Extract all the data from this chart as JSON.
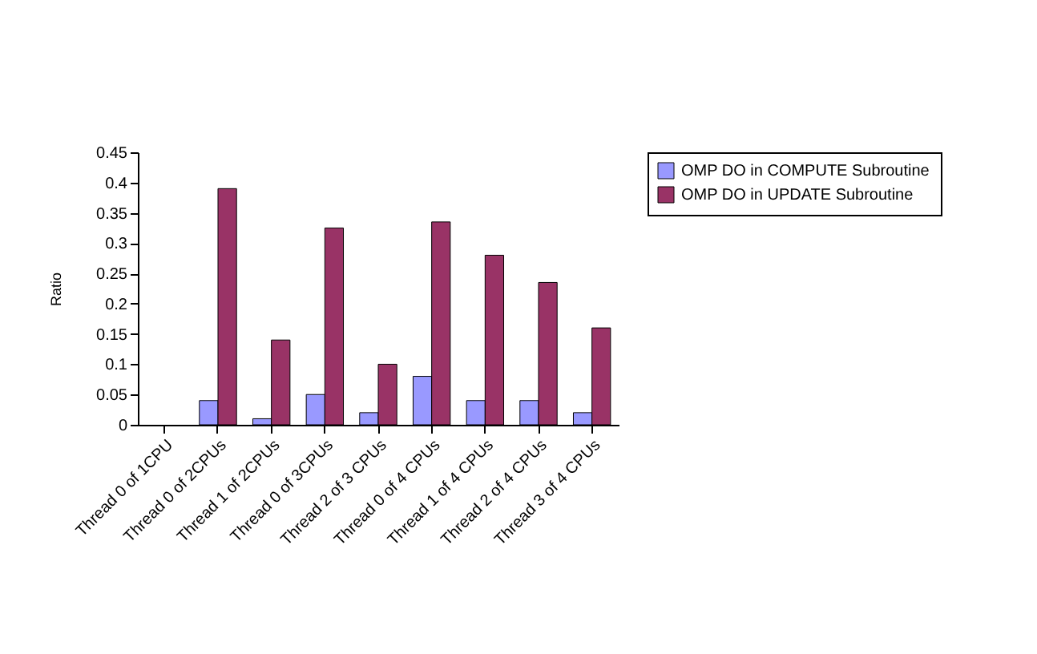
{
  "chart_data": {
    "type": "bar",
    "ylabel": "Ratio",
    "categories": [
      "Thread 0 of 1CPU",
      "Thread 0 of 2CPUs",
      "Thread 1 of 2CPUs",
      "Thread 0 of 3CPUs",
      "Thread 2 of 3 CPUs",
      "Thread 0 of 4 CPUs",
      "Thread 1 of 4 CPUs",
      "Thread 2 of 4 CPUs",
      "Thread 3 of 4 CPUs"
    ],
    "series": [
      {
        "name": "OMP DO in COMPUTE Subroutine",
        "color": "#9999ff",
        "values": [
          null,
          0.04,
          0.01,
          0.05,
          0.02,
          0.08,
          0.04,
          0.04,
          0.02
        ]
      },
      {
        "name": "OMP DO in UPDATE Subroutine",
        "color": "#993366",
        "values": [
          null,
          0.39,
          0.14,
          0.325,
          0.1,
          0.335,
          0.28,
          0.235,
          0.16
        ]
      }
    ],
    "ylim": [
      0,
      0.45
    ],
    "yticks": [
      0,
      0.05,
      0.1,
      0.15,
      0.2,
      0.25,
      0.3,
      0.35,
      0.4,
      0.45
    ],
    "grid": false,
    "legend": "right"
  }
}
